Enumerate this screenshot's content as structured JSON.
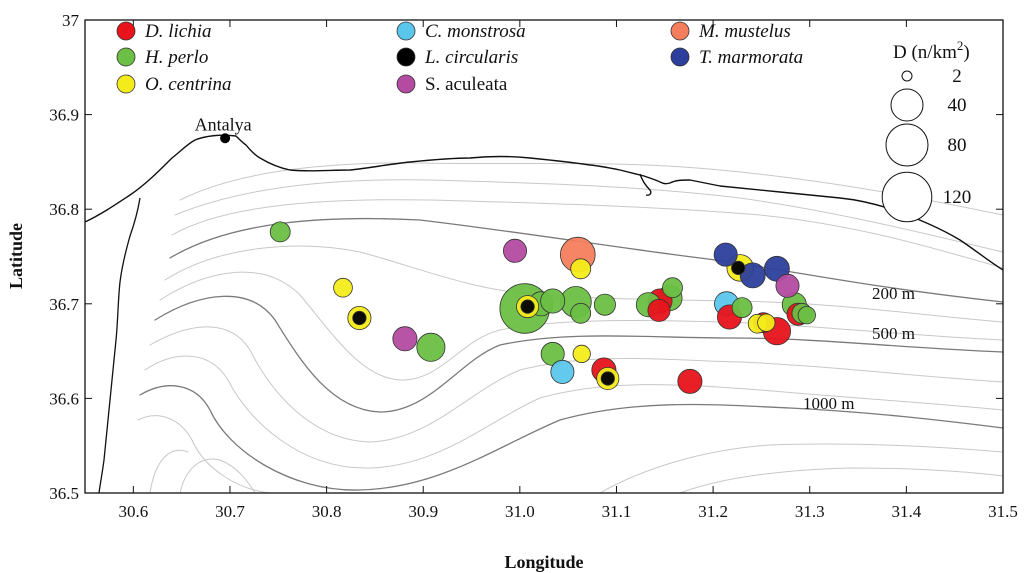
{
  "map": {
    "xlabel": "Longitude",
    "ylabel": "Latitude",
    "xlim": [
      30.55,
      31.5
    ],
    "ylim": [
      36.5,
      37.0
    ],
    "xticks": [
      "30.6",
      "30.7",
      "30.8",
      "30.9",
      "31.0",
      "31.1",
      "31.2",
      "31.3",
      "31.4",
      "31.5"
    ],
    "xtick_values": [
      30.6,
      30.7,
      30.8,
      30.9,
      31.0,
      31.1,
      31.2,
      31.3,
      31.4,
      31.5
    ],
    "yticks": [
      "36.5",
      "36.6",
      "36.7",
      "36.8",
      "36.9",
      "37"
    ],
    "ytick_values": [
      36.5,
      36.6,
      36.7,
      36.8,
      36.9,
      37.0
    ],
    "place": {
      "name": "Antalya",
      "lon": 30.695,
      "lat": 36.875
    },
    "depth_labels": [
      "200 m",
      "500 m",
      "1000 m"
    ]
  },
  "legend": {
    "species": [
      {
        "name": "D. lichia",
        "color": "#e8131b",
        "italic": true
      },
      {
        "name": "H. perlo",
        "color": "#6cbf45",
        "italic": true
      },
      {
        "name": "O. centrina",
        "color": "#f4ec1a",
        "italic": true
      },
      {
        "name": "C. monstrosa",
        "color": "#5bc6ec",
        "italic": true
      },
      {
        "name": "L. circularis",
        "color": "#000000",
        "italic": true
      },
      {
        "name": "S. aculeata",
        "color": "#b44ba1",
        "italic": false
      },
      {
        "name": "M. mustelus",
        "color": "#f47e5c",
        "italic": true
      },
      {
        "name": "T. marmorata",
        "color": "#2d3f9c",
        "italic": true
      }
    ],
    "size_title": "D (n/km",
    "size_title_sup": "2",
    "size_title_close": ")",
    "sizes": [
      {
        "label": "2",
        "value": 2
      },
      {
        "label": "40",
        "value": 40
      },
      {
        "label": "80",
        "value": 80
      },
      {
        "label": "120",
        "value": 120
      }
    ]
  },
  "points": [
    {
      "species": "H. perlo",
      "lon": 30.752,
      "lat": 36.776,
      "d": 10
    },
    {
      "species": "O. centrina",
      "lon": 30.817,
      "lat": 36.717,
      "d": 8
    },
    {
      "species": "O. centrina",
      "lon": 30.834,
      "lat": 36.685,
      "d": 16
    },
    {
      "species": "L. circularis",
      "lon": 30.834,
      "lat": 36.685,
      "d": 2
    },
    {
      "species": "S. aculeata",
      "lon": 30.881,
      "lat": 36.663,
      "d": 18
    },
    {
      "species": "H. perlo",
      "lon": 30.908,
      "lat": 36.654,
      "d": 28
    },
    {
      "species": "S. aculeata",
      "lon": 30.995,
      "lat": 36.756,
      "d": 16
    },
    {
      "species": "H. perlo",
      "lon": 31.005,
      "lat": 36.695,
      "d": 120
    },
    {
      "species": "H. perlo",
      "lon": 31.022,
      "lat": 36.7,
      "d": 18
    },
    {
      "species": "H. perlo",
      "lon": 31.034,
      "lat": 36.703,
      "d": 18
    },
    {
      "species": "O. centrina",
      "lon": 31.008,
      "lat": 36.697,
      "d": 14
    },
    {
      "species": "L. circularis",
      "lon": 31.008,
      "lat": 36.697,
      "d": 2
    },
    {
      "species": "H. perlo",
      "lon": 31.058,
      "lat": 36.702,
      "d": 36
    },
    {
      "species": "H. perlo",
      "lon": 31.063,
      "lat": 36.69,
      "d": 10
    },
    {
      "species": "M. mustelus",
      "lon": 31.06,
      "lat": 36.752,
      "d": 50
    },
    {
      "species": "O. centrina",
      "lon": 31.063,
      "lat": 36.737,
      "d": 10
    },
    {
      "species": "H. perlo",
      "lon": 31.088,
      "lat": 36.699,
      "d": 12
    },
    {
      "species": "H. perlo",
      "lon": 31.034,
      "lat": 36.647,
      "d": 16
    },
    {
      "species": "O. centrina",
      "lon": 31.064,
      "lat": 36.647,
      "d": 6
    },
    {
      "species": "C. monstrosa",
      "lon": 31.044,
      "lat": 36.628,
      "d": 16
    },
    {
      "species": "D. lichia",
      "lon": 31.087,
      "lat": 36.63,
      "d": 18
    },
    {
      "species": "O. centrina",
      "lon": 31.091,
      "lat": 36.621,
      "d": 14
    },
    {
      "species": "L. circularis",
      "lon": 31.091,
      "lat": 36.621,
      "d": 2
    },
    {
      "species": "D. lichia",
      "lon": 31.176,
      "lat": 36.618,
      "d": 18
    },
    {
      "species": "D. lichia",
      "lon": 31.145,
      "lat": 36.703,
      "d": 18
    },
    {
      "species": "D. lichia",
      "lon": 31.144,
      "lat": 36.693,
      "d": 14
    },
    {
      "species": "H. perlo",
      "lon": 31.133,
      "lat": 36.699,
      "d": 18
    },
    {
      "species": "H. perlo",
      "lon": 31.155,
      "lat": 36.706,
      "d": 20
    },
    {
      "species": "H. perlo",
      "lon": 31.158,
      "lat": 36.717,
      "d": 10
    },
    {
      "species": "T. marmorata",
      "lon": 31.213,
      "lat": 36.752,
      "d": 16
    },
    {
      "species": "O. centrina",
      "lon": 31.228,
      "lat": 36.738,
      "d": 24
    },
    {
      "species": "L. circularis",
      "lon": 31.226,
      "lat": 36.738,
      "d": 2
    },
    {
      "species": "T. marmorata",
      "lon": 31.241,
      "lat": 36.73,
      "d": 20
    },
    {
      "species": "T. marmorata",
      "lon": 31.266,
      "lat": 36.737,
      "d": 20
    },
    {
      "species": "C. monstrosa",
      "lon": 31.214,
      "lat": 36.7,
      "d": 18
    },
    {
      "species": "D. lichia",
      "lon": 31.217,
      "lat": 36.686,
      "d": 18
    },
    {
      "species": "H. perlo",
      "lon": 31.23,
      "lat": 36.696,
      "d": 10
    },
    {
      "species": "O. centrina",
      "lon": 31.246,
      "lat": 36.679,
      "d": 8
    },
    {
      "species": "D. lichia",
      "lon": 31.252,
      "lat": 36.68,
      "d": 10
    },
    {
      "species": "O. centrina",
      "lon": 31.255,
      "lat": 36.68,
      "d": 6
    },
    {
      "species": "D. lichia",
      "lon": 31.266,
      "lat": 36.671,
      "d": 26
    },
    {
      "species": "S. aculeata",
      "lon": 31.277,
      "lat": 36.719,
      "d": 16
    },
    {
      "species": "H. perlo",
      "lon": 31.284,
      "lat": 36.699,
      "d": 18
    },
    {
      "species": "D. lichia",
      "lon": 31.288,
      "lat": 36.689,
      "d": 14
    },
    {
      "species": "H. perlo",
      "lon": 31.292,
      "lat": 36.69,
      "d": 10
    },
    {
      "species": "H. perlo",
      "lon": 31.297,
      "lat": 36.688,
      "d": 6
    }
  ]
}
